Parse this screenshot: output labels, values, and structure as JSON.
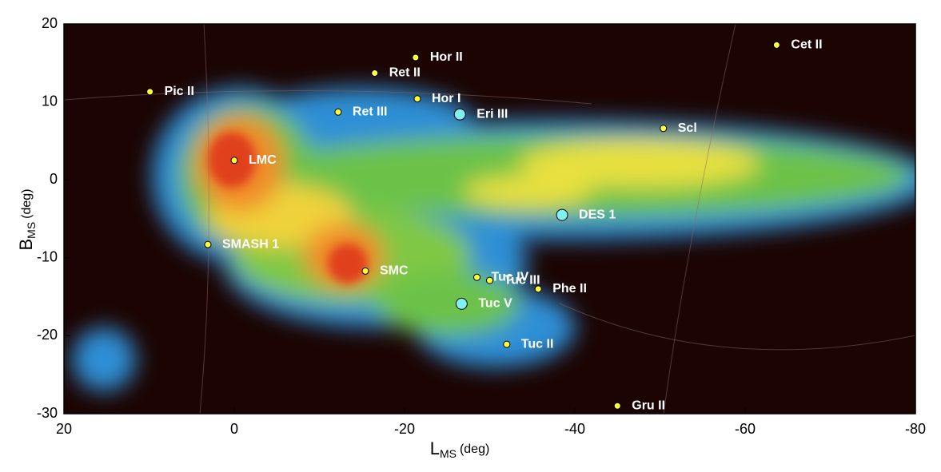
{
  "chart_data": {
    "type": "scatter",
    "xlabel": {
      "main": "L",
      "sub": "MS",
      "unit": "(deg)"
    },
    "ylabel": {
      "main": "B",
      "sub": "MS",
      "unit": "(deg)"
    },
    "xlim": [
      20,
      -80
    ],
    "ylim": [
      -30,
      20
    ],
    "xticks": [
      20,
      0,
      -20,
      -40,
      -60,
      -80
    ],
    "yticks": [
      20,
      10,
      0,
      -10,
      -20,
      -30
    ],
    "series": [
      {
        "color": "#ffff40",
        "size": 4,
        "labels": [
          "Pic II",
          "Hor II",
          "Ret II",
          "Hor I",
          "Ret III",
          "Cet II",
          "Scl",
          "LMC",
          "SMASH 1",
          "SMC",
          "Tuc IV",
          "Tuc III",
          "Phe II",
          "Tuc II",
          "Gru II"
        ],
        "x": [
          9.9,
          -21.3,
          -16.5,
          -21.5,
          -12.2,
          -63.7,
          -50.4,
          0,
          3.1,
          -15.4,
          -28.5,
          -30.0,
          -35.7,
          -32.0,
          -45.0
        ],
        "y": [
          11.3,
          15.7,
          13.7,
          10.4,
          8.7,
          17.3,
          6.6,
          2.5,
          -8.3,
          -11.7,
          -12.5,
          -12.9,
          -14.0,
          -21.1,
          -29.0
        ]
      },
      {
        "color": "#80f0f0",
        "size": 7,
        "labels": [
          "Eri III",
          "DES 1",
          "Tuc V"
        ],
        "x": [
          -26.5,
          -38.5,
          -26.7
        ],
        "y": [
          8.4,
          -4.5,
          -15.9
        ]
      }
    ]
  }
}
